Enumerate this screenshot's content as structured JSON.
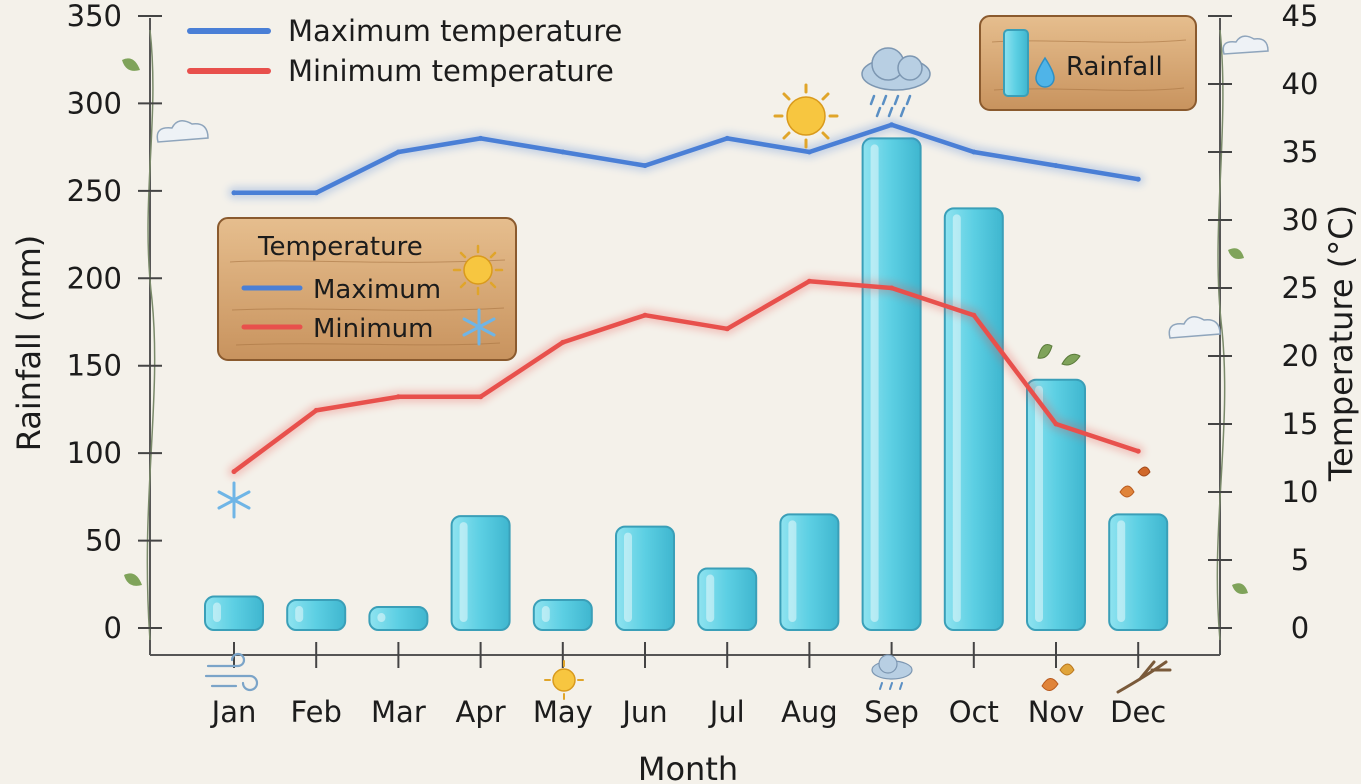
{
  "chart_data": {
    "type": "bar-line-combo",
    "categories": [
      "Jan",
      "Feb",
      "Mar",
      "Apr",
      "May",
      "Jun",
      "Jul",
      "Aug",
      "Sep",
      "Oct",
      "Nov",
      "Dec"
    ],
    "rainfall": {
      "name": "Rainfall",
      "unit": "mm",
      "values": [
        18,
        16,
        12,
        64,
        16,
        58,
        34,
        65,
        280,
        240,
        142,
        65
      ],
      "color": "#5fd0e4"
    },
    "series": [
      {
        "name": "Maximum temperature",
        "short_name": "Maximum",
        "values": [
          32,
          32,
          35,
          36,
          35,
          34,
          36,
          35,
          37,
          35,
          34,
          33
        ],
        "color": "#4a7fd6"
      },
      {
        "name": "Minimum temperature",
        "short_name": "Minimum",
        "values": [
          11.5,
          16,
          17,
          17,
          21,
          23,
          22,
          25.5,
          25,
          23,
          15,
          13
        ],
        "color": "#e8504c"
      }
    ],
    "xlabel": "Month",
    "ylabel_left": "Rainfall (mm)",
    "ylabel_right": "Temperature (°C)",
    "ylim_left": [
      0,
      350
    ],
    "ylim_right": [
      0,
      45
    ],
    "yticks_left": [
      0,
      50,
      100,
      150,
      200,
      250,
      300,
      350
    ],
    "yticks_right": [
      0,
      5,
      10,
      15,
      20,
      25,
      30,
      35,
      40,
      45
    ],
    "legend_position": "top-left",
    "temperature_sign": {
      "title": "Temperature",
      "max_label": "Maximum",
      "min_label": "Minimum"
    },
    "rainfall_sign": {
      "label": "Rainfall"
    }
  }
}
